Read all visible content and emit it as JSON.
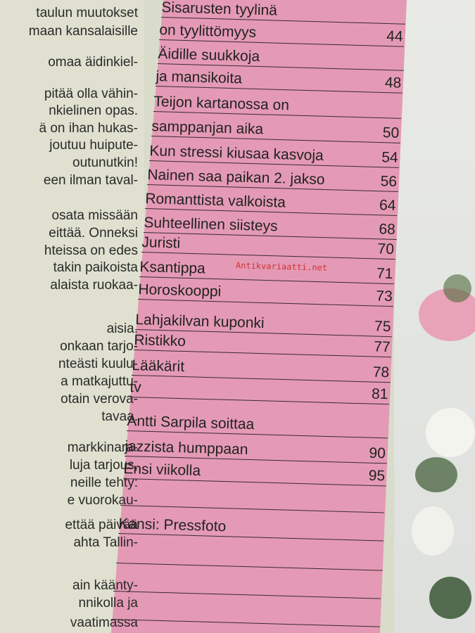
{
  "left_column": [
    "taulun muutokset",
    "maan kansalaisille",
    "omaa äidinkiel-",
    "pitää olla vähin-",
    "nkielinen opas.",
    "ä on ihan hukas-",
    "joutuu huipute-",
    "outunutkin!",
    "een ilman taval-",
    "osata missään",
    "eittää. Onneksi",
    "hteissa on edes",
    "takin paikoista",
    "alaista ruokaa-",
    "aisia.",
    "onkaan tarjo-",
    "nteästi kuulu-",
    "a matkajuttu-",
    "otain verova-",
    "tavaa.",
    "markkinara-",
    "luja tarjous,",
    "neille tehty:",
    "e vuorokau-",
    "ettää päivää",
    "ahta Tallin-",
    "ain käänty-",
    "nnikolla ja",
    "vaatimassa"
  ],
  "contents": [
    {
      "title": "Sisarusten tyylinä",
      "page": ""
    },
    {
      "title": "on tyylittömyys",
      "page": "44"
    },
    {
      "title": "Äidille suukkoja",
      "page": ""
    },
    {
      "title": "ja mansikoita",
      "page": "48"
    },
    {
      "title": "Teijon kartanossa on",
      "page": ""
    },
    {
      "title": "samppanjan aika",
      "page": "50"
    },
    {
      "title": "Kun stressi kiusaa kasvoja",
      "page": "54"
    },
    {
      "title": "Nainen saa paikan 2. jakso",
      "page": "56"
    },
    {
      "title": "Romanttista valkoista",
      "page": "64"
    },
    {
      "title": "Suhteellinen siisteys",
      "page": "68"
    },
    {
      "title": "Juristi",
      "page": "70"
    },
    {
      "title": "Ksantippa",
      "page": "71"
    },
    {
      "title": "Horoskooppi",
      "page": "73"
    },
    {
      "title": "Lahjakilvan kuponki",
      "page": "75"
    },
    {
      "title": "Ristikko",
      "page": "77"
    },
    {
      "title": "Lääkärit",
      "page": "78"
    },
    {
      "title": "tv",
      "page": "81"
    },
    {
      "title": "Antti Sarpila soittaa",
      "page": ""
    },
    {
      "title": "jazzista humppaan",
      "page": "90"
    },
    {
      "title": "Ensi viikolla",
      "page": "95"
    },
    {
      "title": "",
      "page": ""
    },
    {
      "title": "Kansi: Pressfoto",
      "page": ""
    },
    {
      "title": "",
      "page": ""
    },
    {
      "title": "",
      "page": ""
    },
    {
      "title": "",
      "page": ""
    }
  ],
  "watermark": "Antikvariaatti.net",
  "colors": {
    "pink": "#e49ab5",
    "paper": "#dfe0cf",
    "watermark": "#d2322e"
  }
}
